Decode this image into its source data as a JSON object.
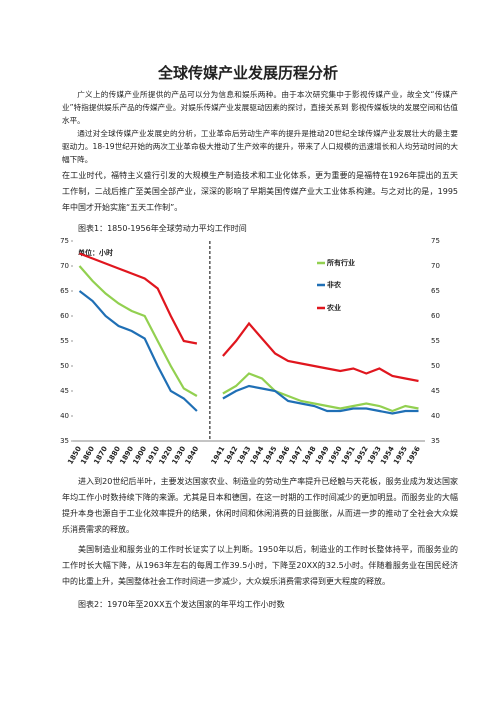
{
  "title": "全球传媒产业发展历程分析",
  "paragraphs": [
    "广义上的传媒产业所提供的产品可以分为信息和娱乐两种。由于本次研究集中于影视传媒产业，故全文“传媒产业”特指提供娱乐产品的传媒产业。对娱乐传媒产业发展驱动因素的探讨，直接关系到 影视传媒板块的发展空间和估值水平。",
    "通过对全球传媒产业发展史的分析，工业革命后劳动生产率的提升是推动20世纪全球传媒产业发展壮大的最主要驱动力。18-19世纪开始的两次工业革命极大推动了生产效率的提升，带来了人口规模的迅速增长和人均劳动时间的大幅下降。",
    "在工业时代，福特主义盛行引发的大规模生产制造技术和工业化体系，更为重要的是福特在1926年提出的五天工作制，二战后推广至美国全部产业，深深的影响了早期美国传媒产业大工业体系构建。与之对比的是，1995年中国才开始实施“五天工作制”。",
    "进入到20世纪后半叶，主要发达国家农业、制造业的劳动生产率提升已经触与天花板，服务业成为发达国家年均工作小时数持续下降的来源。尤其是日本和德国，在这一时期的工作时间减少的更加明显。而服务业的大幅提升本身也源自于工业化效率提升的结果，休闲时间和休闲消费的日益膨胀，从而进一步的推动了全社会大众娱乐消费需求的释放。",
    "美国制造业和服务业的工作时长证实了以上判断。1950年以后，制造业的工作时长整体持平，而服务业的工作时长大幅下降，从1963年左右的每周工作39.5小时，下降至20XX的32.5小时。伴随着服务业在国民经济中的比重上升，美国整体社会工作时间进一步减少，大众娱乐消费需求得到更大程度的释放。"
  ],
  "captions": [
    "图表1：1850-1956年全球劳动力平均工作时间",
    "图表2：1970年至20XX五个发达国家的年平均工作小时数"
  ],
  "chart_data": {
    "type": "line",
    "unit_label": "单位：小时",
    "categories": [
      "1850",
      "1860",
      "1870",
      "1880",
      "1890",
      "1900",
      "1910",
      "1920",
      "1930",
      "1940",
      null,
      "1941",
      "1942",
      "1943",
      "1944",
      "1945",
      "1946",
      "1947",
      "1948",
      "1949",
      "1950",
      "1951",
      "1952",
      "1953",
      "1954",
      "1955",
      "1956"
    ],
    "series": [
      {
        "name": "所有行业",
        "color": "#92d050",
        "values": [
          70,
          67,
          64.5,
          62.5,
          61,
          60,
          55,
          50,
          45.5,
          44,
          null,
          44.5,
          46,
          48.5,
          47.5,
          45,
          44,
          43,
          42.5,
          42,
          41.5,
          42,
          42.5,
          42,
          41,
          42,
          41.5
        ]
      },
      {
        "name": "非农",
        "color": "#1f6fb5",
        "values": [
          65,
          63,
          60,
          58,
          57,
          55.5,
          50,
          45,
          43.5,
          41,
          null,
          43.5,
          45,
          46,
          45.5,
          45,
          43,
          42.5,
          42,
          41,
          41,
          41.5,
          41.5,
          41,
          40.5,
          41,
          41
        ]
      },
      {
        "name": "农业",
        "color": "#e0161e",
        "values": [
          72.5,
          71.5,
          70.5,
          69.5,
          68.5,
          67.5,
          65.5,
          60,
          55,
          54.5,
          null,
          52,
          55,
          58.5,
          55.5,
          52.5,
          51,
          50.5,
          50,
          49.5,
          49,
          49.5,
          48.5,
          49.5,
          48,
          47.5,
          47
        ]
      }
    ],
    "ylim": [
      35,
      75
    ],
    "yticks": [
      35,
      40,
      45,
      50,
      55,
      60,
      65,
      70,
      75
    ],
    "y2lim": [
      35,
      75
    ],
    "y2ticks": [
      35,
      40,
      45,
      50,
      55,
      60,
      65,
      70,
      75
    ]
  }
}
